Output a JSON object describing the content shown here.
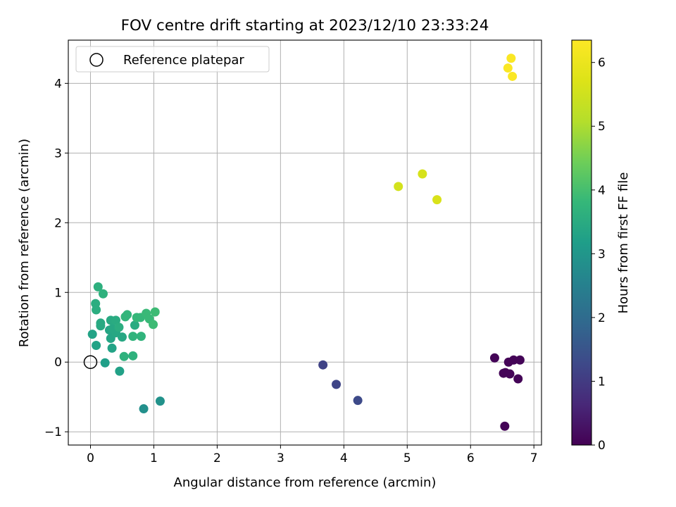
{
  "chart_data": {
    "type": "scatter",
    "title": "FOV centre drift starting at 2023/12/10 23:33:24",
    "xlabel": "Angular distance from reference (arcmin)",
    "ylabel": "Rotation from reference (arcmin)",
    "xlim": [
      -0.35,
      7.12
    ],
    "ylim": [
      -1.19,
      4.62
    ],
    "xticks": [
      "0",
      "1",
      "2",
      "3",
      "4",
      "5",
      "6",
      "7"
    ],
    "yticks": [
      "−1",
      "0",
      "1",
      "2",
      "3",
      "4"
    ],
    "grid": true,
    "legend": {
      "location": "top-left",
      "entries": [
        "Reference platepar"
      ]
    },
    "reference_point": {
      "x": 0,
      "y": 0
    },
    "colorbar": {
      "label": "Hours from first FF file",
      "range": [
        0,
        6.35
      ],
      "ticks": [
        "0",
        "1",
        "2",
        "3",
        "4",
        "5",
        "6"
      ],
      "colormap": "viridis"
    },
    "points": [
      {
        "x": 6.38,
        "y": 0.06,
        "c": 0.05
      },
      {
        "x": 6.6,
        "y": 0.0,
        "c": 0.05
      },
      {
        "x": 6.68,
        "y": 0.03,
        "c": 0.05
      },
      {
        "x": 6.78,
        "y": 0.03,
        "c": 0.05
      },
      {
        "x": 6.52,
        "y": -0.16,
        "c": 0.05
      },
      {
        "x": 6.55,
        "y": -0.15,
        "c": 0.05
      },
      {
        "x": 6.62,
        "y": -0.17,
        "c": 0.05
      },
      {
        "x": 6.75,
        "y": -0.24,
        "c": 0.05
      },
      {
        "x": 6.54,
        "y": -0.92,
        "c": 0.05
      },
      {
        "x": 3.67,
        "y": -0.04,
        "c": 1.15
      },
      {
        "x": 3.88,
        "y": -0.32,
        "c": 1.2
      },
      {
        "x": 4.22,
        "y": -0.55,
        "c": 1.3
      },
      {
        "x": 0.84,
        "y": -0.67,
        "c": 2.85
      },
      {
        "x": 1.1,
        "y": -0.56,
        "c": 2.9
      },
      {
        "x": 0.23,
        "y": -0.01,
        "c": 3.2
      },
      {
        "x": 0.46,
        "y": -0.13,
        "c": 3.25
      },
      {
        "x": 0.03,
        "y": 0.4,
        "c": 3.3
      },
      {
        "x": 0.09,
        "y": 0.24,
        "c": 3.3
      },
      {
        "x": 0.34,
        "y": 0.2,
        "c": 3.3
      },
      {
        "x": 0.32,
        "y": 0.34,
        "c": 3.35
      },
      {
        "x": 0.3,
        "y": 0.46,
        "c": 3.35
      },
      {
        "x": 0.4,
        "y": 0.42,
        "c": 3.4
      },
      {
        "x": 0.35,
        "y": 0.48,
        "c": 3.4
      },
      {
        "x": 0.5,
        "y": 0.36,
        "c": 3.4
      },
      {
        "x": 0.16,
        "y": 0.52,
        "c": 3.45
      },
      {
        "x": 0.16,
        "y": 0.56,
        "c": 3.45
      },
      {
        "x": 0.32,
        "y": 0.6,
        "c": 3.45
      },
      {
        "x": 0.4,
        "y": 0.6,
        "c": 3.5
      },
      {
        "x": 0.7,
        "y": 0.53,
        "c": 3.5
      },
      {
        "x": 0.09,
        "y": 0.75,
        "c": 3.55
      },
      {
        "x": 0.08,
        "y": 0.84,
        "c": 3.55
      },
      {
        "x": 0.12,
        "y": 1.08,
        "c": 3.6
      },
      {
        "x": 0.2,
        "y": 0.98,
        "c": 3.65
      },
      {
        "x": 0.45,
        "y": 0.5,
        "c": 3.55
      },
      {
        "x": 0.53,
        "y": 0.08,
        "c": 3.65
      },
      {
        "x": 0.67,
        "y": 0.09,
        "c": 3.65
      },
      {
        "x": 0.67,
        "y": 0.37,
        "c": 3.7
      },
      {
        "x": 0.8,
        "y": 0.37,
        "c": 3.7
      },
      {
        "x": 0.55,
        "y": 0.65,
        "c": 3.75
      },
      {
        "x": 0.58,
        "y": 0.68,
        "c": 3.75
      },
      {
        "x": 0.73,
        "y": 0.64,
        "c": 3.8
      },
      {
        "x": 0.79,
        "y": 0.64,
        "c": 3.8
      },
      {
        "x": 0.88,
        "y": 0.7,
        "c": 3.85
      },
      {
        "x": 0.93,
        "y": 0.62,
        "c": 3.85
      },
      {
        "x": 0.99,
        "y": 0.54,
        "c": 3.9
      },
      {
        "x": 1.02,
        "y": 0.72,
        "c": 3.9
      },
      {
        "x": 4.86,
        "y": 2.52,
        "c": 5.55
      },
      {
        "x": 5.24,
        "y": 2.7,
        "c": 5.6
      },
      {
        "x": 5.47,
        "y": 2.33,
        "c": 5.65
      },
      {
        "x": 6.59,
        "y": 4.22,
        "c": 6.3
      },
      {
        "x": 6.64,
        "y": 4.36,
        "c": 6.3
      },
      {
        "x": 6.66,
        "y": 4.1,
        "c": 6.3
      }
    ]
  }
}
